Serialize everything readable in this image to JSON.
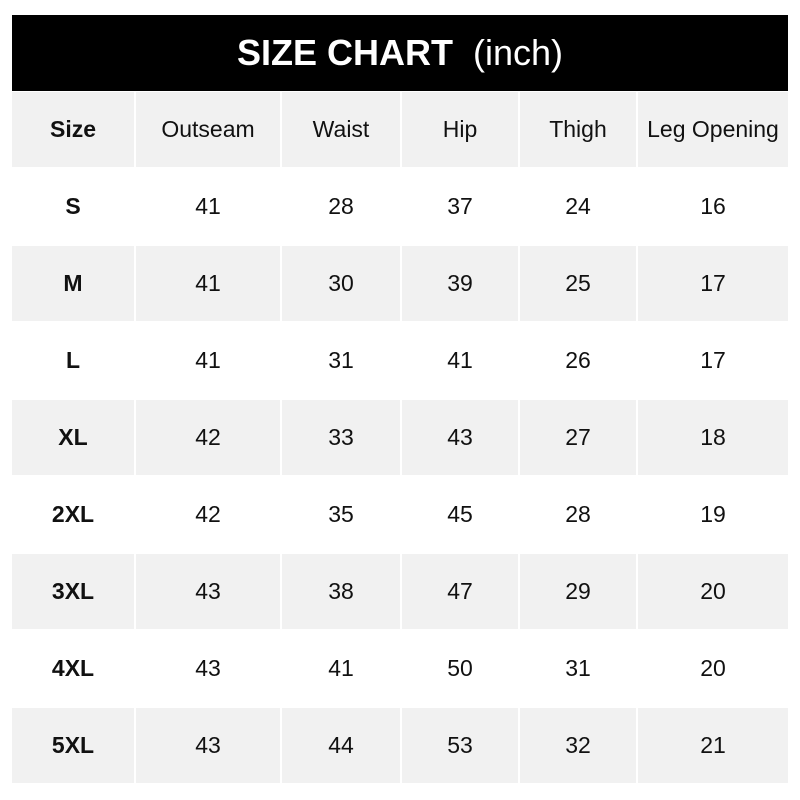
{
  "title": {
    "main": "SIZE CHART",
    "unit": "(inch)"
  },
  "columns": [
    "Size",
    "Outseam",
    "Waist",
    "Hip",
    "Thigh",
    "Leg Opening"
  ],
  "rows": [
    [
      "S",
      "41",
      "28",
      "37",
      "24",
      "16"
    ],
    [
      "M",
      "41",
      "30",
      "39",
      "25",
      "17"
    ],
    [
      "L",
      "41",
      "31",
      "41",
      "26",
      "17"
    ],
    [
      "XL",
      "42",
      "33",
      "43",
      "27",
      "18"
    ],
    [
      "2XL",
      "42",
      "35",
      "45",
      "28",
      "19"
    ],
    [
      "3XL",
      "43",
      "38",
      "47",
      "29",
      "20"
    ],
    [
      "4XL",
      "43",
      "41",
      "50",
      "31",
      "20"
    ],
    [
      "5XL",
      "43",
      "44",
      "53",
      "32",
      "21"
    ]
  ],
  "colors": {
    "header_bg": "#000000",
    "stripe": "#f1f1f1"
  }
}
